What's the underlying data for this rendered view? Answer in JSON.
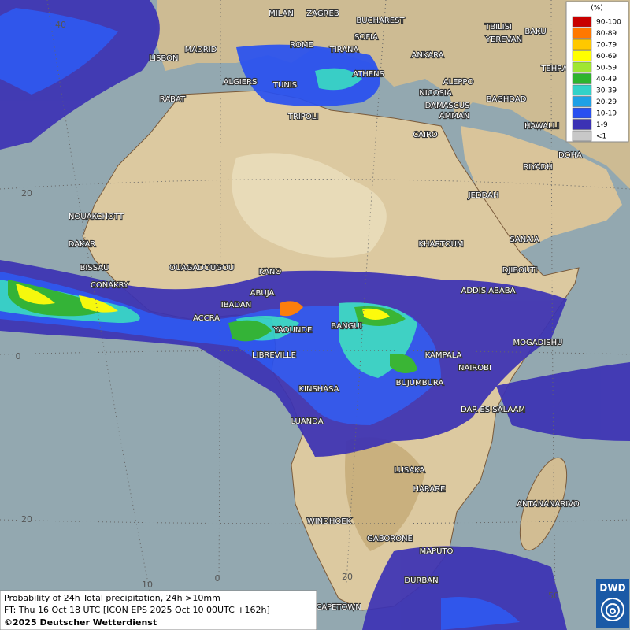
{
  "legend": {
    "title": "(%)",
    "entries": [
      {
        "label": "90-100",
        "color": "#c80000"
      },
      {
        "label": "80-89",
        "color": "#ff7800"
      },
      {
        "label": "70-79",
        "color": "#ffc800"
      },
      {
        "label": "60-69",
        "color": "#ffff00"
      },
      {
        "label": "50-59",
        "color": "#a0e632"
      },
      {
        "label": "40-49",
        "color": "#2db42d"
      },
      {
        "label": "30-39",
        "color": "#32d2c8"
      },
      {
        "label": "20-29",
        "color": "#1ea0e6"
      },
      {
        "label": "10-19",
        "color": "#2850f0"
      },
      {
        "label": "1-9",
        "color": "#3c32b4"
      },
      {
        "label": "<1",
        "color": "#c8c8c8"
      }
    ]
  },
  "graticule_labels": [
    "40",
    "20",
    "0",
    "20",
    "10",
    "0",
    "20",
    "50"
  ],
  "cities": [
    "MILAN",
    "ZAGREB",
    "BUCHAREST",
    "TBILISI",
    "BAKU",
    "LISBON",
    "MADRID",
    "ROME",
    "SOFIA",
    "TIRANA",
    "ANKARA",
    "YEREVAN",
    "TEHRA",
    "ALGIERS",
    "TUNIS",
    "ATHENS",
    "ALEPPO",
    "RABAT",
    "NICOSIA",
    "BAGHDAD",
    "DAMASCUS",
    "TRIPOLI",
    "AMMAN",
    "HAWALLI",
    "CAIRO",
    "DOHA",
    "RIYADH",
    "JEDDAH",
    "NOUAKCHOTT",
    "SANA'A",
    "DAKAR",
    "KHARTOUM",
    "BISSAU",
    "OUAGADOUGOU",
    "KANO",
    "DJIBOUTI",
    "CONAKRY",
    "ABUJA",
    "ADDIS ABABA",
    "IBADAN",
    "ACCRA",
    "YAOUNDE",
    "BANGUI",
    "MOGADISHU",
    "LIBREVILLE",
    "KAMPALA",
    "NAIROBI",
    "BUJUMBURA",
    "KINSHASA",
    "DAR ES SALAAM",
    "LUANDA",
    "LUSAKA",
    "HARARE",
    "ANTANANARIVO",
    "WINDHOEK",
    "GABORONE",
    "MAPUTO",
    "DURBAN",
    "CAPETOWN"
  ],
  "footer": {
    "line1": "Probability of 24h Total precipitation, 24h >10mm",
    "line2": "FT: Thu 16 Oct 18 UTC [ICON EPS 2025 Oct 10 00UTC +162h]",
    "copyright": "©2025 Deutscher Wetterdienst"
  },
  "logo": "DWD"
}
